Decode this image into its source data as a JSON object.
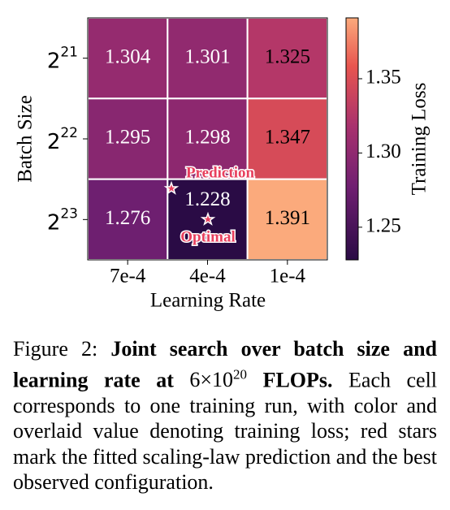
{
  "chart_data": {
    "type": "heatmap",
    "x_label": "Learning Rate",
    "y_label": "Batch Size",
    "x_categories": [
      "7e-4",
      "4e-4",
      "1e-4"
    ],
    "y_categories": [
      {
        "base": "2",
        "exponent": "21"
      },
      {
        "base": "2",
        "exponent": "22"
      },
      {
        "base": "2",
        "exponent": "23"
      }
    ],
    "values": [
      [
        1.304,
        1.301,
        1.325
      ],
      [
        1.295,
        1.298,
        1.347
      ],
      [
        1.276,
        1.228,
        1.391
      ]
    ],
    "colorbar_label": "Training Loss",
    "clim": [
      1.228,
      1.391
    ],
    "colorbar_ticks": [
      1.25,
      {
        "value": 1.3,
        "label": "1.30"
      },
      1.35
    ],
    "annotations": {
      "prediction": "Prediction",
      "optimal": "Optimal"
    }
  },
  "caption": {
    "label": "Figure 2:",
    "bold_start": "Joint search over batch size and learning rate at",
    "math": {
      "mantissa": "6",
      "times": "×",
      "base": "10",
      "exponent": "20"
    },
    "bold_end": "FLOPs.",
    "body": "Each cell corresponds to one training run, with color and overlaid value denoting training loss; red stars mark the fitted scaling-law prediction and the best observed configuration."
  }
}
